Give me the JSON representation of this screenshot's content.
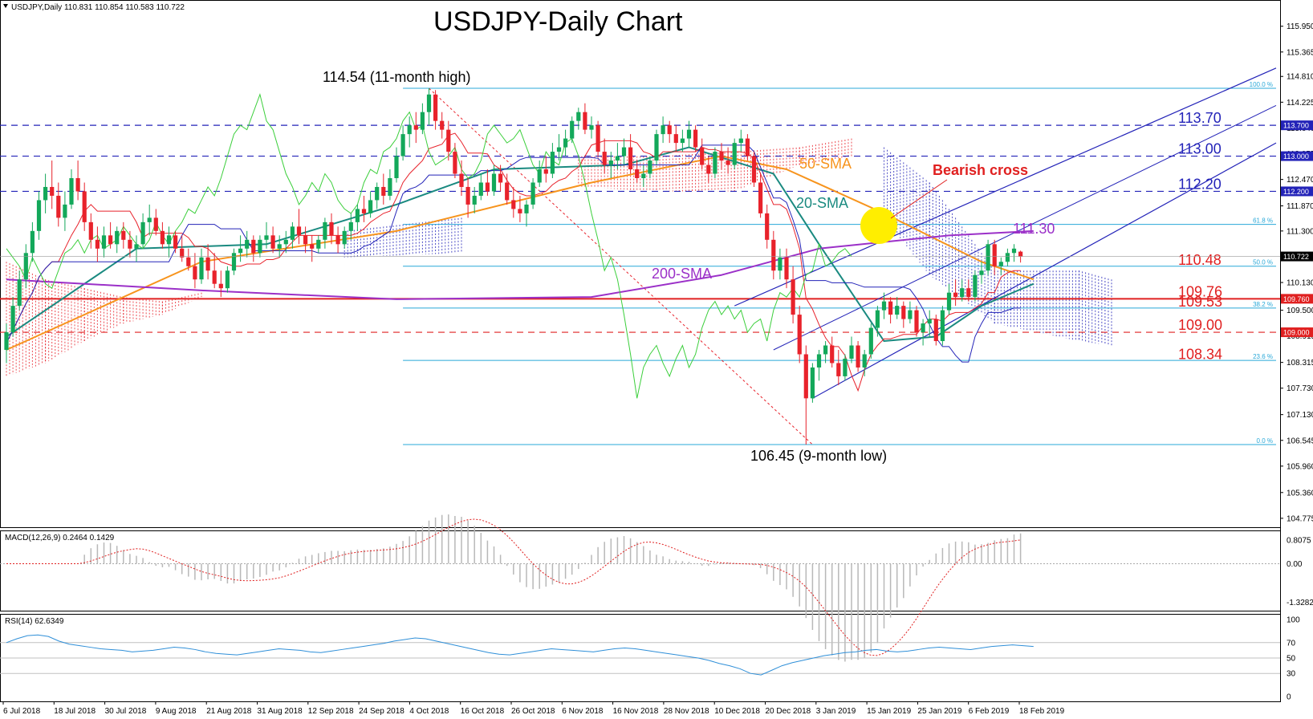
{
  "header": {
    "symbol_info": "USDJPY,Daily  110.831 110.854 110.583 110.722",
    "title": "USDJPY-Daily Chart",
    "macd_label": "MACD(12,26,9) 0.2464 0.1429",
    "rsi_label": "RSI(14) 62.6349"
  },
  "chart_data": {
    "type": "candlestick",
    "title": "USDJPY-Daily Chart",
    "x_tick_labels": [
      "6 Jul 2018",
      "18 Jul 2018",
      "30 Jul 2018",
      "9 Aug 2018",
      "21 Aug 2018",
      "31 Aug 2018",
      "12 Sep 2018",
      "24 Sep 2018",
      "4 Oct 2018",
      "16 Oct 2018",
      "26 Oct 2018",
      "6 Nov 2018",
      "16 Nov 2018",
      "28 Nov 2018",
      "10 Dec 2018",
      "20 Dec 2018",
      "3 Jan 2019",
      "15 Jan 2019",
      "25 Jan 2019",
      "6 Feb 2019",
      "18 Feb 2019"
    ],
    "y_ticks": [
      115.95,
      115.365,
      114.81,
      114.225,
      113.64,
      113.055,
      112.47,
      111.87,
      111.3,
      110.722,
      110.13,
      109.5,
      108.915,
      108.315,
      107.73,
      107.13,
      106.545,
      105.96,
      105.36,
      104.775
    ],
    "y_tick_labels": [
      "115.950",
      "115.365",
      "114.810",
      "114.225",
      "113.640",
      "113.055",
      "112.470",
      "111.870",
      "111.300",
      "110.722",
      "110.130",
      "109.500",
      "108.915",
      "108.315",
      "107.730",
      "107.130",
      "106.545",
      "105.960",
      "105.360",
      "104.775"
    ],
    "ylim": [
      104.7,
      116.4
    ],
    "current_price": 110.722,
    "current_price_label": "110.722",
    "candles": [
      [
        108.6,
        109.2,
        108.3,
        109.0
      ],
      [
        109.0,
        109.8,
        108.9,
        109.6
      ],
      [
        109.6,
        110.4,
        109.5,
        110.2
      ],
      [
        110.2,
        111.0,
        110.0,
        110.8
      ],
      [
        110.8,
        111.5,
        110.6,
        111.3
      ],
      [
        111.3,
        112.2,
        111.1,
        112.0
      ],
      [
        112.0,
        112.6,
        111.7,
        112.3
      ],
      [
        112.3,
        112.9,
        111.8,
        112.1
      ],
      [
        112.1,
        112.4,
        111.4,
        111.6
      ],
      [
        111.6,
        112.2,
        111.3,
        111.9
      ],
      [
        111.9,
        112.7,
        111.8,
        112.5
      ],
      [
        112.5,
        112.9,
        112.0,
        112.2
      ],
      [
        112.2,
        112.4,
        111.3,
        111.5
      ],
      [
        111.5,
        111.7,
        110.9,
        111.1
      ],
      [
        111.1,
        111.4,
        110.6,
        110.9
      ],
      [
        110.9,
        111.4,
        110.7,
        111.2
      ],
      [
        111.2,
        111.5,
        110.9,
        111.0
      ],
      [
        111.0,
        111.4,
        110.8,
        111.3
      ],
      [
        111.3,
        111.5,
        110.9,
        111.1
      ],
      [
        111.1,
        111.3,
        110.7,
        110.9
      ],
      [
        110.9,
        111.2,
        110.6,
        111.0
      ],
      [
        111.0,
        111.7,
        110.9,
        111.5
      ],
      [
        111.5,
        111.9,
        111.2,
        111.6
      ],
      [
        111.6,
        111.8,
        111.2,
        111.3
      ],
      [
        111.3,
        111.5,
        110.9,
        111.0
      ],
      [
        111.0,
        111.4,
        110.7,
        111.2
      ],
      [
        111.2,
        111.3,
        110.8,
        110.9
      ],
      [
        110.9,
        111.2,
        110.6,
        110.7
      ],
      [
        110.7,
        110.9,
        110.4,
        110.5
      ],
      [
        110.5,
        110.8,
        110.0,
        110.2
      ],
      [
        110.2,
        110.9,
        110.1,
        110.7
      ],
      [
        110.7,
        111.0,
        110.2,
        110.4
      ],
      [
        110.4,
        110.8,
        110.0,
        110.1
      ],
      [
        110.1,
        110.4,
        109.8,
        110.0
      ],
      [
        110.0,
        110.5,
        109.9,
        110.4
      ],
      [
        110.4,
        110.9,
        110.3,
        110.8
      ],
      [
        110.8,
        111.2,
        110.6,
        110.9
      ],
      [
        110.9,
        111.3,
        110.7,
        111.1
      ],
      [
        111.1,
        111.2,
        110.6,
        110.8
      ],
      [
        110.8,
        111.2,
        110.7,
        111.1
      ],
      [
        111.1,
        111.5,
        110.9,
        111.2
      ],
      [
        111.2,
        111.4,
        110.8,
        110.9
      ],
      [
        110.9,
        111.2,
        110.7,
        111.0
      ],
      [
        111.0,
        111.3,
        110.8,
        111.1
      ],
      [
        111.1,
        111.5,
        110.9,
        111.4
      ],
      [
        111.4,
        111.8,
        111.0,
        111.2
      ],
      [
        111.2,
        111.4,
        110.8,
        111.0
      ],
      [
        111.0,
        111.2,
        110.6,
        110.9
      ],
      [
        110.9,
        111.2,
        110.8,
        111.1
      ],
      [
        111.1,
        111.6,
        110.9,
        111.5
      ],
      [
        111.5,
        111.7,
        111.0,
        111.2
      ],
      [
        111.2,
        111.4,
        110.8,
        111.0
      ],
      [
        111.0,
        111.4,
        110.9,
        111.3
      ],
      [
        111.3,
        111.7,
        111.1,
        111.5
      ],
      [
        111.5,
        111.9,
        111.3,
        111.8
      ],
      [
        111.8,
        112.1,
        111.5,
        111.7
      ],
      [
        111.7,
        112.2,
        111.6,
        112.0
      ],
      [
        112.0,
        112.4,
        111.8,
        112.3
      ],
      [
        112.3,
        112.6,
        111.9,
        112.1
      ],
      [
        112.1,
        112.7,
        112.0,
        112.5
      ],
      [
        112.5,
        113.2,
        112.4,
        113.0
      ],
      [
        113.0,
        113.7,
        112.9,
        113.5
      ],
      [
        113.5,
        113.9,
        113.2,
        113.7
      ],
      [
        113.7,
        114.0,
        113.3,
        113.6
      ],
      [
        113.6,
        114.2,
        113.5,
        114.0
      ],
      [
        114.0,
        114.54,
        113.7,
        114.4
      ],
      [
        114.4,
        114.5,
        113.6,
        113.8
      ],
      [
        113.8,
        114.0,
        113.4,
        113.6
      ],
      [
        113.6,
        113.8,
        112.9,
        113.1
      ],
      [
        113.1,
        113.3,
        112.5,
        112.6
      ],
      [
        112.6,
        112.9,
        112.1,
        112.3
      ],
      [
        112.3,
        112.5,
        111.6,
        111.9
      ],
      [
        111.9,
        112.3,
        111.7,
        112.1
      ],
      [
        112.1,
        112.6,
        112.0,
        112.4
      ],
      [
        112.4,
        112.7,
        112.1,
        112.2
      ],
      [
        112.2,
        112.8,
        112.1,
        112.6
      ],
      [
        112.6,
        112.8,
        112.2,
        112.4
      ],
      [
        112.4,
        112.6,
        111.9,
        112.0
      ],
      [
        112.0,
        112.3,
        111.6,
        111.8
      ],
      [
        111.8,
        112.1,
        111.5,
        111.7
      ],
      [
        111.7,
        112.0,
        111.4,
        111.9
      ],
      [
        111.9,
        112.5,
        111.8,
        112.4
      ],
      [
        112.4,
        112.9,
        112.3,
        112.7
      ],
      [
        112.7,
        113.0,
        112.4,
        112.6
      ],
      [
        112.6,
        113.3,
        112.5,
        113.1
      ],
      [
        113.1,
        113.5,
        112.9,
        113.2
      ],
      [
        113.2,
        113.6,
        113.0,
        113.4
      ],
      [
        113.4,
        113.9,
        113.3,
        113.8
      ],
      [
        113.8,
        114.1,
        113.6,
        114.0
      ],
      [
        114.0,
        114.2,
        113.5,
        113.6
      ],
      [
        113.6,
        113.9,
        113.4,
        113.7
      ],
      [
        113.7,
        113.8,
        113.0,
        113.1
      ],
      [
        113.1,
        113.4,
        112.6,
        112.8
      ],
      [
        112.8,
        113.1,
        112.5,
        112.9
      ],
      [
        112.9,
        113.3,
        112.7,
        113.0
      ],
      [
        113.0,
        113.4,
        112.8,
        113.2
      ],
      [
        113.2,
        113.5,
        112.6,
        112.7
      ],
      [
        112.7,
        112.9,
        112.4,
        112.5
      ],
      [
        112.5,
        112.8,
        112.3,
        112.6
      ],
      [
        112.6,
        113.0,
        112.5,
        112.9
      ],
      [
        112.9,
        113.6,
        112.8,
        113.5
      ],
      [
        113.5,
        113.9,
        113.3,
        113.7
      ],
      [
        113.7,
        113.8,
        113.3,
        113.5
      ],
      [
        113.5,
        113.7,
        113.1,
        113.3
      ],
      [
        113.3,
        113.6,
        113.1,
        113.4
      ],
      [
        113.4,
        113.8,
        113.2,
        113.6
      ],
      [
        113.6,
        113.7,
        113.1,
        113.2
      ],
      [
        113.2,
        113.4,
        112.7,
        112.8
      ],
      [
        112.8,
        113.0,
        112.4,
        112.6
      ],
      [
        112.6,
        113.2,
        112.5,
        113.1
      ],
      [
        113.1,
        113.3,
        112.7,
        112.9
      ],
      [
        112.9,
        113.2,
        112.6,
        112.8
      ],
      [
        112.8,
        113.4,
        112.7,
        113.3
      ],
      [
        113.3,
        113.6,
        113.1,
        113.4
      ],
      [
        113.4,
        113.5,
        112.9,
        113.0
      ],
      [
        113.0,
        113.1,
        112.3,
        112.4
      ],
      [
        112.4,
        112.6,
        111.6,
        111.7
      ],
      [
        111.7,
        111.9,
        110.9,
        111.1
      ],
      [
        111.1,
        111.3,
        110.2,
        110.4
      ],
      [
        110.4,
        110.9,
        110.2,
        110.7
      ],
      [
        110.7,
        110.9,
        110.0,
        110.2
      ],
      [
        110.2,
        110.5,
        109.2,
        109.4
      ],
      [
        109.4,
        109.6,
        108.3,
        108.5
      ],
      [
        108.5,
        108.7,
        106.45,
        107.5
      ],
      [
        107.5,
        108.3,
        107.4,
        108.2
      ],
      [
        108.2,
        108.6,
        107.9,
        108.5
      ],
      [
        108.5,
        108.8,
        108.3,
        108.7
      ],
      [
        108.7,
        108.9,
        108.2,
        108.3
      ],
      [
        108.3,
        108.6,
        107.8,
        108.0
      ],
      [
        108.0,
        108.5,
        107.9,
        108.4
      ],
      [
        108.4,
        108.9,
        108.3,
        108.7
      ],
      [
        108.7,
        108.8,
        108.1,
        108.2
      ],
      [
        108.2,
        108.6,
        108.0,
        108.5
      ],
      [
        108.5,
        109.2,
        108.4,
        109.1
      ],
      [
        109.1,
        109.6,
        108.9,
        109.5
      ],
      [
        109.5,
        109.9,
        109.3,
        109.7
      ],
      [
        109.7,
        109.8,
        109.2,
        109.4
      ],
      [
        109.4,
        109.8,
        109.3,
        109.6
      ],
      [
        109.6,
        109.7,
        109.1,
        109.3
      ],
      [
        109.3,
        109.7,
        109.2,
        109.5
      ],
      [
        109.5,
        109.6,
        108.9,
        109.0
      ],
      [
        109.0,
        109.3,
        108.7,
        109.2
      ],
      [
        109.2,
        109.5,
        108.9,
        109.3
      ],
      [
        109.3,
        109.4,
        108.7,
        108.8
      ],
      [
        108.8,
        109.6,
        108.7,
        109.5
      ],
      [
        109.5,
        110.1,
        109.4,
        109.9
      ],
      [
        109.9,
        110.2,
        109.6,
        109.8
      ],
      [
        109.8,
        110.2,
        109.7,
        110.0
      ],
      [
        110.0,
        110.2,
        109.7,
        109.8
      ],
      [
        109.8,
        110.4,
        109.7,
        110.3
      ],
      [
        110.3,
        110.6,
        110.1,
        110.4
      ],
      [
        110.4,
        111.1,
        110.3,
        111.0
      ],
      [
        111.0,
        111.1,
        110.3,
        110.5
      ],
      [
        110.5,
        110.7,
        110.3,
        110.6
      ],
      [
        110.6,
        110.9,
        110.5,
        110.8
      ],
      [
        110.8,
        111.0,
        110.6,
        110.9
      ],
      [
        110.831,
        110.854,
        110.583,
        110.722
      ]
    ],
    "series": [
      {
        "name": "20-SMA",
        "color": "#1a8a80",
        "values": [
          [
            0,
            108.9
          ],
          [
            20,
            110.9
          ],
          [
            40,
            111.0
          ],
          [
            60,
            111.9
          ],
          [
            75,
            112.7
          ],
          [
            95,
            112.8
          ],
          [
            105,
            113.2
          ],
          [
            118,
            112.6
          ],
          [
            125,
            111.0
          ],
          [
            135,
            108.8
          ],
          [
            143,
            108.9
          ],
          [
            150,
            109.6
          ],
          [
            158,
            110.1
          ]
        ]
      },
      {
        "name": "50-SMA",
        "color": "#f7941d",
        "values": [
          [
            0,
            108.6
          ],
          [
            30,
            110.6
          ],
          [
            60,
            111.3
          ],
          [
            90,
            112.4
          ],
          [
            110,
            113.0
          ],
          [
            120,
            112.7
          ],
          [
            135,
            111.7
          ],
          [
            150,
            110.6
          ],
          [
            158,
            110.2
          ]
        ]
      },
      {
        "name": "200-SMA",
        "color": "#9b30c8",
        "values": [
          [
            0,
            110.2
          ],
          [
            30,
            109.95
          ],
          [
            60,
            109.75
          ],
          [
            90,
            109.8
          ],
          [
            110,
            110.3
          ],
          [
            125,
            110.9
          ],
          [
            145,
            111.2
          ],
          [
            158,
            111.3
          ]
        ]
      }
    ],
    "levels": [
      {
        "label": "113.70",
        "value": 113.7,
        "style": "dashed",
        "color": "#2323b8"
      },
      {
        "label": "113.00",
        "value": 113.0,
        "style": "dashed",
        "color": "#2323b8"
      },
      {
        "label": "112.20",
        "value": 112.2,
        "style": "dashed",
        "color": "#2323b8"
      },
      {
        "label": "110.48",
        "value": 110.48,
        "style": "none",
        "color": "#e02020"
      },
      {
        "label": "109.76",
        "value": 109.76,
        "style": "solid",
        "color": "#e02020"
      },
      {
        "label": "109.53",
        "value": 109.53,
        "style": "none",
        "color": "#e02020"
      },
      {
        "label": "109.00",
        "value": 109.0,
        "style": "dashed",
        "color": "#e02020"
      },
      {
        "label": "108.34",
        "value": 108.34,
        "style": "none",
        "color": "#e02020"
      }
    ],
    "level_tags": [
      {
        "label": "113.700",
        "value": 113.7,
        "color": "#2323b8"
      },
      {
        "label": "113.000",
        "value": 113.0,
        "color": "#2323b8"
      },
      {
        "label": "112.200",
        "value": 112.2,
        "color": "#2323b8"
      },
      {
        "label": "109.760",
        "value": 109.76,
        "color": "#e02020"
      },
      {
        "label": "109.000",
        "value": 109.0,
        "color": "#e02020"
      }
    ],
    "fibonacci": [
      {
        "label": "100.0 %",
        "value": 114.54
      },
      {
        "label": "61.8 %",
        "value": 111.45
      },
      {
        "label": "50.0 %",
        "value": 110.5
      },
      {
        "label": "38.2 %",
        "value": 109.55
      },
      {
        "label": "23.6 %",
        "value": 108.36
      },
      {
        "label": "0.0 %",
        "value": 106.45
      }
    ],
    "annotations": {
      "high": "114.54 (11-month high)",
      "low": "106.45 (9-month low)",
      "bearish_cross": "Bearish cross",
      "sma50": "50-SMA",
      "sma20": "20-SMA",
      "sma200": "200-SMA",
      "level_111": "111.30"
    },
    "macd_ticks": [
      "0.8075",
      "0.00",
      "-1.3282"
    ],
    "macd_range": [
      -1.45,
      0.95
    ],
    "rsi_ticks": [
      "100",
      "70",
      "50",
      "30",
      "0"
    ],
    "rsi_values": [
      70,
      75,
      79,
      80,
      78,
      72,
      68,
      66,
      64,
      62,
      61,
      60,
      58,
      59,
      60,
      62,
      64,
      63,
      61,
      58,
      56,
      55,
      54,
      56,
      58,
      60,
      62,
      61,
      60,
      58,
      57,
      59,
      61,
      63,
      65,
      67,
      69,
      72,
      74,
      76,
      75,
      72,
      69,
      66,
      63,
      60,
      57,
      55,
      54,
      56,
      58,
      60,
      62,
      61,
      60,
      59,
      58,
      60,
      62,
      63,
      62,
      60,
      58,
      56,
      54,
      52,
      50,
      47,
      43,
      40,
      36,
      30,
      28,
      34,
      40,
      44,
      47,
      50,
      53,
      55,
      57,
      58,
      60,
      61,
      59,
      58,
      59,
      61,
      63,
      64,
      63,
      62,
      61,
      63,
      65,
      66,
      67,
      66,
      65
    ]
  },
  "colors": {
    "bull_candle": "#13a85a",
    "bear_candle": "#e8222b",
    "tenkan": "#e8222b",
    "kijun": "#2323b8",
    "chikou": "#3ccf3c",
    "cloud_bear": "#e8222b",
    "cloud_bull": "#2323b8",
    "fib": "#29a8d8",
    "highlight": "#ffee00"
  }
}
